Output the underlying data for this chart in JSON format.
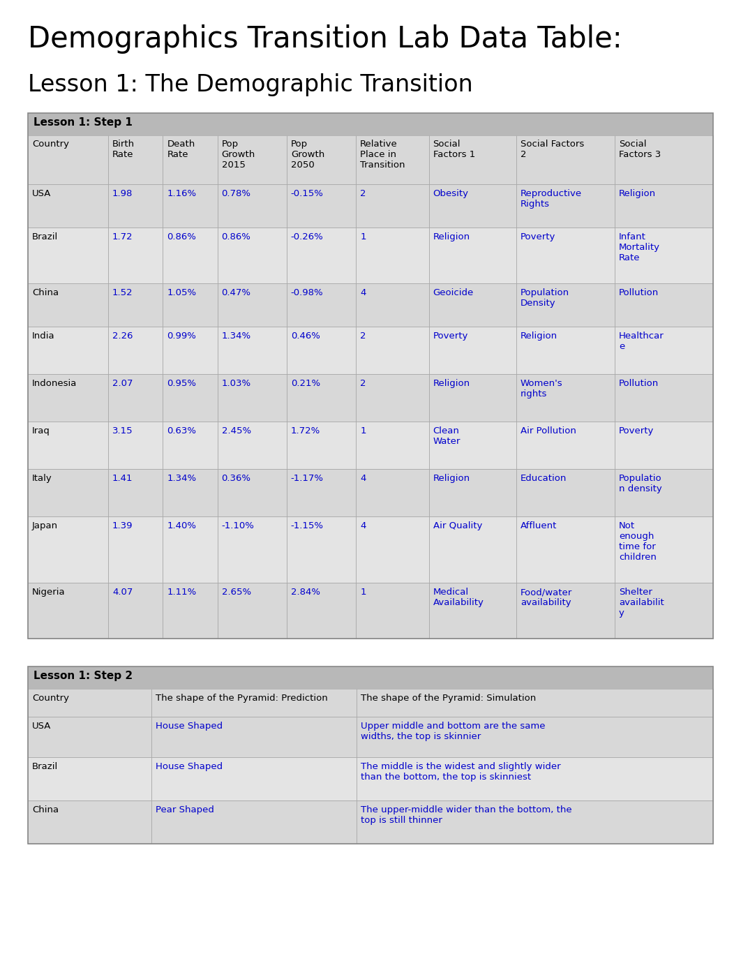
{
  "main_title": "Demographics Transition Lab Data Table:",
  "subtitle": "Lesson 1: The Demographic Transition",
  "bg_color": "#ffffff",
  "table_bg": "#d8d8d8",
  "table_header_bg": "#b8b8b8",
  "row_bg_light": "#e4e4e4",
  "blue_color": "#0000cc",
  "black_color": "#000000",
  "gray_text": "#333333",
  "section1_header": "Lesson 1: Step 1",
  "step1_col_headers": [
    "Country",
    "Birth\nRate",
    "Death\nRate",
    "Pop\nGrowth\n2015",
    "Pop\nGrowth\n2050",
    "Relative\nPlace in\nTransition",
    "Social\nFactors 1",
    "Social Factors\n2",
    "Social\nFactors 3"
  ],
  "step1_col_props": [
    0.11,
    0.075,
    0.075,
    0.095,
    0.095,
    0.1,
    0.12,
    0.135,
    0.135
  ],
  "step1_rows": [
    [
      "USA",
      "1.98",
      "1.16%",
      "0.78%",
      "-0.15%",
      "2",
      "Obesity",
      "Reproductive\nRights",
      "Religion"
    ],
    [
      "Brazil",
      "1.72",
      "0.86%",
      "0.86%",
      "-0.26%",
      "1",
      "Religion",
      "Poverty",
      "Infant\nMortality\nRate"
    ],
    [
      "China",
      "1.52",
      "1.05%",
      "0.47%",
      "-0.98%",
      "4",
      "Geoicide",
      "Population\nDensity",
      "Pollution"
    ],
    [
      "India",
      "2.26",
      "0.99%",
      "1.34%",
      "0.46%",
      "2",
      "Poverty",
      "Religion",
      "Healthcar\ne"
    ],
    [
      "Indonesia",
      "2.07",
      "0.95%",
      "1.03%",
      "0.21%",
      "2",
      "Religion",
      "Women's\nrights",
      "Pollution"
    ],
    [
      "Iraq",
      "3.15",
      "0.63%",
      "2.45%",
      "1.72%",
      "1",
      "Clean\nWater",
      "Air Pollution",
      "Poverty"
    ],
    [
      "Italy",
      "1.41",
      "1.34%",
      "0.36%",
      "-1.17%",
      "4",
      "Religion",
      "Education",
      "Populatio\nn density"
    ],
    [
      "Japan",
      "1.39",
      "1.40%",
      "-1.10%",
      "-1.15%",
      "4",
      "Air Quality",
      "Affluent",
      "Not\nenough\ntime for\nchildren"
    ],
    [
      "Nigeria",
      "4.07",
      "1.11%",
      "2.65%",
      "2.84%",
      "1",
      "Medical\nAvailability",
      "Food/water\navailability",
      "Shelter\navailabilit\ny"
    ]
  ],
  "section2_header": "Lesson 1: Step 2",
  "step2_col_headers": [
    "Country",
    "The shape of the Pyramid: Prediction",
    "The shape of the Pyramid: Simulation"
  ],
  "step2_col_props": [
    0.18,
    0.3,
    0.52
  ],
  "step2_rows": [
    [
      "USA",
      "House Shaped",
      "Upper middle and bottom are the same\nwidths, the top is skinnier"
    ],
    [
      "Brazil",
      "House Shaped",
      "The middle is the widest and slightly wider\nthan the bottom, the top is skinniest"
    ],
    [
      "China",
      "Pear Shaped",
      "The upper-middle wider than the bottom, the\ntop is still thinner"
    ]
  ]
}
